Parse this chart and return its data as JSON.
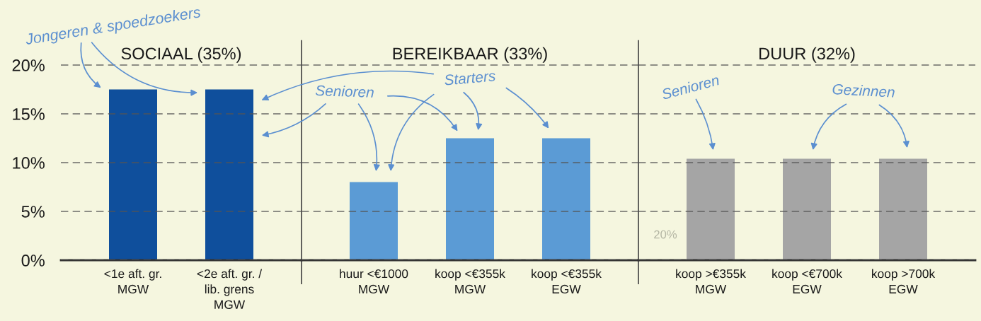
{
  "chart_data": [
    {
      "type": "bar",
      "title": "SOCIAAL (35%)",
      "categories": [
        "<1e aft. gr.\nMGW",
        "<2e aft. gr. /\nlib. grens\nMGW"
      ],
      "values": [
        17.5,
        17.5
      ],
      "color": "#0f4f9c",
      "ylim": [
        0,
        22.5
      ],
      "yticks": [
        {
          "value": 0,
          "label": "0%"
        },
        {
          "value": 5,
          "label": "5%"
        },
        {
          "value": 10,
          "label": "10%"
        },
        {
          "value": 15,
          "label": "15%"
        },
        {
          "value": 20,
          "label": "20%"
        }
      ],
      "grid": "y",
      "annotations": [
        "Jongeren & spoedzoekers"
      ]
    },
    {
      "type": "bar",
      "title": "BEREIKBAAR (33%)",
      "categories": [
        "huur <€1000\nMGW",
        "koop <€355k\nMGW",
        "koop <€355k\nEGW"
      ],
      "values": [
        8,
        12.5,
        12.5
      ],
      "color": "#5b9bd5",
      "ylim": [
        0,
        22.5
      ],
      "yticks": [
        0,
        5,
        10,
        15,
        20
      ],
      "grid": "y",
      "tick_labels": "x",
      "annotations": [
        "Senioren",
        "Starters"
      ]
    },
    {
      "type": "bar",
      "title": "DUUR (32%)",
      "categories": [
        "koop >€355k\nMGW",
        "koop <€700k\nEGW",
        "koop >700k\nEGW"
      ],
      "values": [
        10.4,
        10.4,
        10.4
      ],
      "color": "#a5a5a5",
      "ylim": [
        0,
        22.5
      ],
      "yticks": [
        0,
        5,
        10,
        15,
        20
      ],
      "grid": "y",
      "tick_labels": "x",
      "annotations": [
        "Senioren",
        "Gezinnen",
        "20%"
      ]
    }
  ]
}
